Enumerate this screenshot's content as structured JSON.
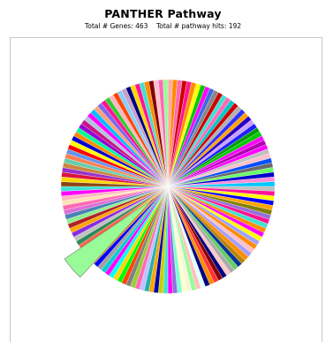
{
  "chart_data": {
    "type": "pie",
    "title": "PANTHER Pathway",
    "subtitle_parts": [
      "Total # Genes: 463",
      "Total # pathway hits: 192"
    ],
    "slice_colors": [
      "#ffaaaa",
      "#ff8c00",
      "#ff69b4",
      "#cc0000",
      "#ff1493",
      "#ff8c00",
      "#ffff00",
      "#00c800",
      "#ff00ff",
      "#4169e1",
      "#888888",
      "#cc0000",
      "#40e0d0",
      "#ff69b4",
      "#00c8c8",
      "#cc0000",
      "#b0b0b0",
      "#3030ff",
      "#ffa500",
      "#2a00c8",
      "#c8a0ff",
      "#2020ff",
      "#00a000",
      "#00c800",
      "#ff00ff",
      "#b000b0",
      "#ff00ff",
      "#c0c0c0",
      "#ffc0cb",
      "#0050ff",
      "#6a6a6a",
      "#66ff66",
      "#0000cc",
      "#ff8cd8",
      "#00c8ff",
      "#c0c0c0",
      "#ff1493",
      "#ffff00",
      "#0000ff",
      "#ffa500",
      "#808000",
      "#9370db",
      "#ff1493",
      "#40e0d0",
      "#ff8c00",
      "#ff00ff",
      "#ffff00",
      "#a0a0ff",
      "#ff8c00",
      "#ffc0cb",
      "#a0a0ff",
      "#ff8c00",
      "#b8860b",
      "#003399",
      "#66cc66",
      "#aaaaaa",
      "#ffc8c8",
      "#000080",
      "#8b0000",
      "#ff3333",
      "#ff8c00",
      "#000080",
      "#e0ffff",
      "#ffc0c0",
      "#98fb98",
      "#f5f5dc",
      "#ffffcc",
      "#7fffd4",
      "#9370db",
      "#ff00ff",
      "#40e0d0",
      "#cccc00",
      "#0000aa",
      "#ffa500",
      "#20b2aa",
      "#c0c0ff",
      "#ff69b4",
      "#9acd32",
      "#808080",
      "#ff4500",
      "#00ff00",
      "#ffd700",
      "#00ffff",
      "#ff00ff",
      "#00ced1",
      "#a0a0a0",
      "#0000ff",
      "#ff8c00",
      "#ff1493",
      "#6b8e23",
      "#ffff00",
      "#ff6347",
      "#2e8b57",
      "#c0c0c0",
      "#8a2be2",
      "#ffa500",
      "#b22222",
      "#90ee90",
      "#4682b4",
      "#da70d6",
      "#ff69b4",
      "#ffe4b5",
      "#ffb6c1",
      "#ff00ff",
      "#40e0d0",
      "#8b4513",
      "#ffd700",
      "#dc143c",
      "#9932cc",
      "#cd853f",
      "#66cdaa",
      "#ff7f50",
      "#6495ed",
      "#ff0000",
      "#ffff00",
      "#0000cd",
      "#ff8c00",
      "#00fa9a",
      "#9400d3",
      "#c71585",
      "#b0c4de",
      "#ff00ff",
      "#00bfff",
      "#ffa07a",
      "#7b68ee",
      "#ff1493",
      "#32cd32",
      "#ffb6c1",
      "#ff4500",
      "#87cefa",
      "#c8a2c8",
      "#000080",
      "#ffd700",
      "#ff1493",
      "#40e0d0",
      "#ff8c00",
      "#800000",
      "#ffc0cb",
      "#ff69b4",
      "#98fb98"
    ],
    "exploded_slice_color": "#98fb98"
  }
}
